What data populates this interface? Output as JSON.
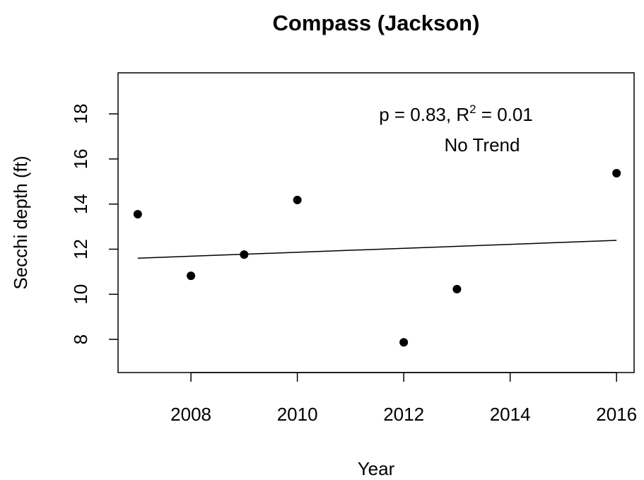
{
  "chart_data": {
    "type": "scatter",
    "title": "Compass (Jackson)",
    "xlabel": "Year",
    "ylabel": "Secchi depth (ft)",
    "x": [
      2007,
      2008,
      2009,
      2010,
      2012,
      2013,
      2016
    ],
    "values": [
      13.55,
      10.82,
      11.76,
      14.18,
      7.87,
      10.23,
      15.37
    ],
    "color": "#000000",
    "trend": {
      "x": [
        2007,
        2016
      ],
      "values": [
        11.6,
        12.39
      ],
      "color": "#000000"
    },
    "annotation": {
      "text": "p = 0.83, R",
      "superscript": "2",
      "suffix": " = 0.01",
      "note": "No Trend"
    },
    "xlim": [
      2006.63,
      2016.33
    ],
    "ylim": [
      6.53,
      19.82
    ],
    "xticks": [
      2008,
      2010,
      2012,
      2014,
      2016
    ],
    "yticks": [
      8,
      10,
      12,
      14,
      16,
      18
    ]
  }
}
